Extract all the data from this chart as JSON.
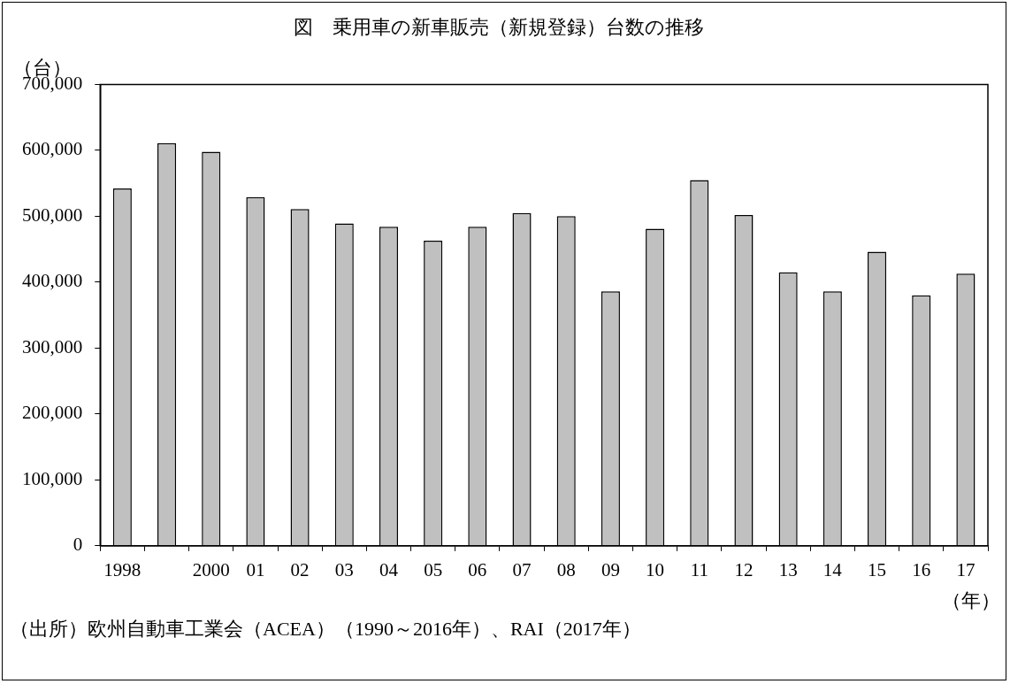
{
  "chart_data": {
    "type": "bar",
    "title": "図　乗用車の新車販売（新規登録）台数の推移",
    "ylabel": "（台）",
    "xlabel": "（年）",
    "annotations": [
      "（出所）欧州自動車工業会（ACEA）（1990～2016年）、RAI（2017年）"
    ],
    "categories": [
      "1998",
      null,
      "2000",
      "01",
      "02",
      "03",
      "04",
      "05",
      "06",
      "07",
      "08",
      "09",
      "10",
      "11",
      "12",
      "13",
      "14",
      "15",
      "16",
      "17"
    ],
    "values": [
      542000,
      611000,
      598000,
      529000,
      511000,
      489000,
      484000,
      463000,
      484000,
      505000,
      500000,
      386000,
      481000,
      555000,
      502000,
      415000,
      386000,
      446000,
      380000,
      413000
    ],
    "color": "#c0c0c0",
    "ylim": [
      0,
      700000
    ],
    "yticks": [
      {
        "value": 0,
        "label": "0"
      },
      {
        "value": 100000,
        "label": "100,000"
      },
      {
        "value": 200000,
        "label": "200,000"
      },
      {
        "value": 300000,
        "label": "300,000"
      },
      {
        "value": 400000,
        "label": "400,000"
      },
      {
        "value": 500000,
        "label": "500,000"
      },
      {
        "value": 600000,
        "label": "600,000"
      },
      {
        "value": 700000,
        "label": "700,000"
      }
    ],
    "grid": false,
    "legend": false
  }
}
